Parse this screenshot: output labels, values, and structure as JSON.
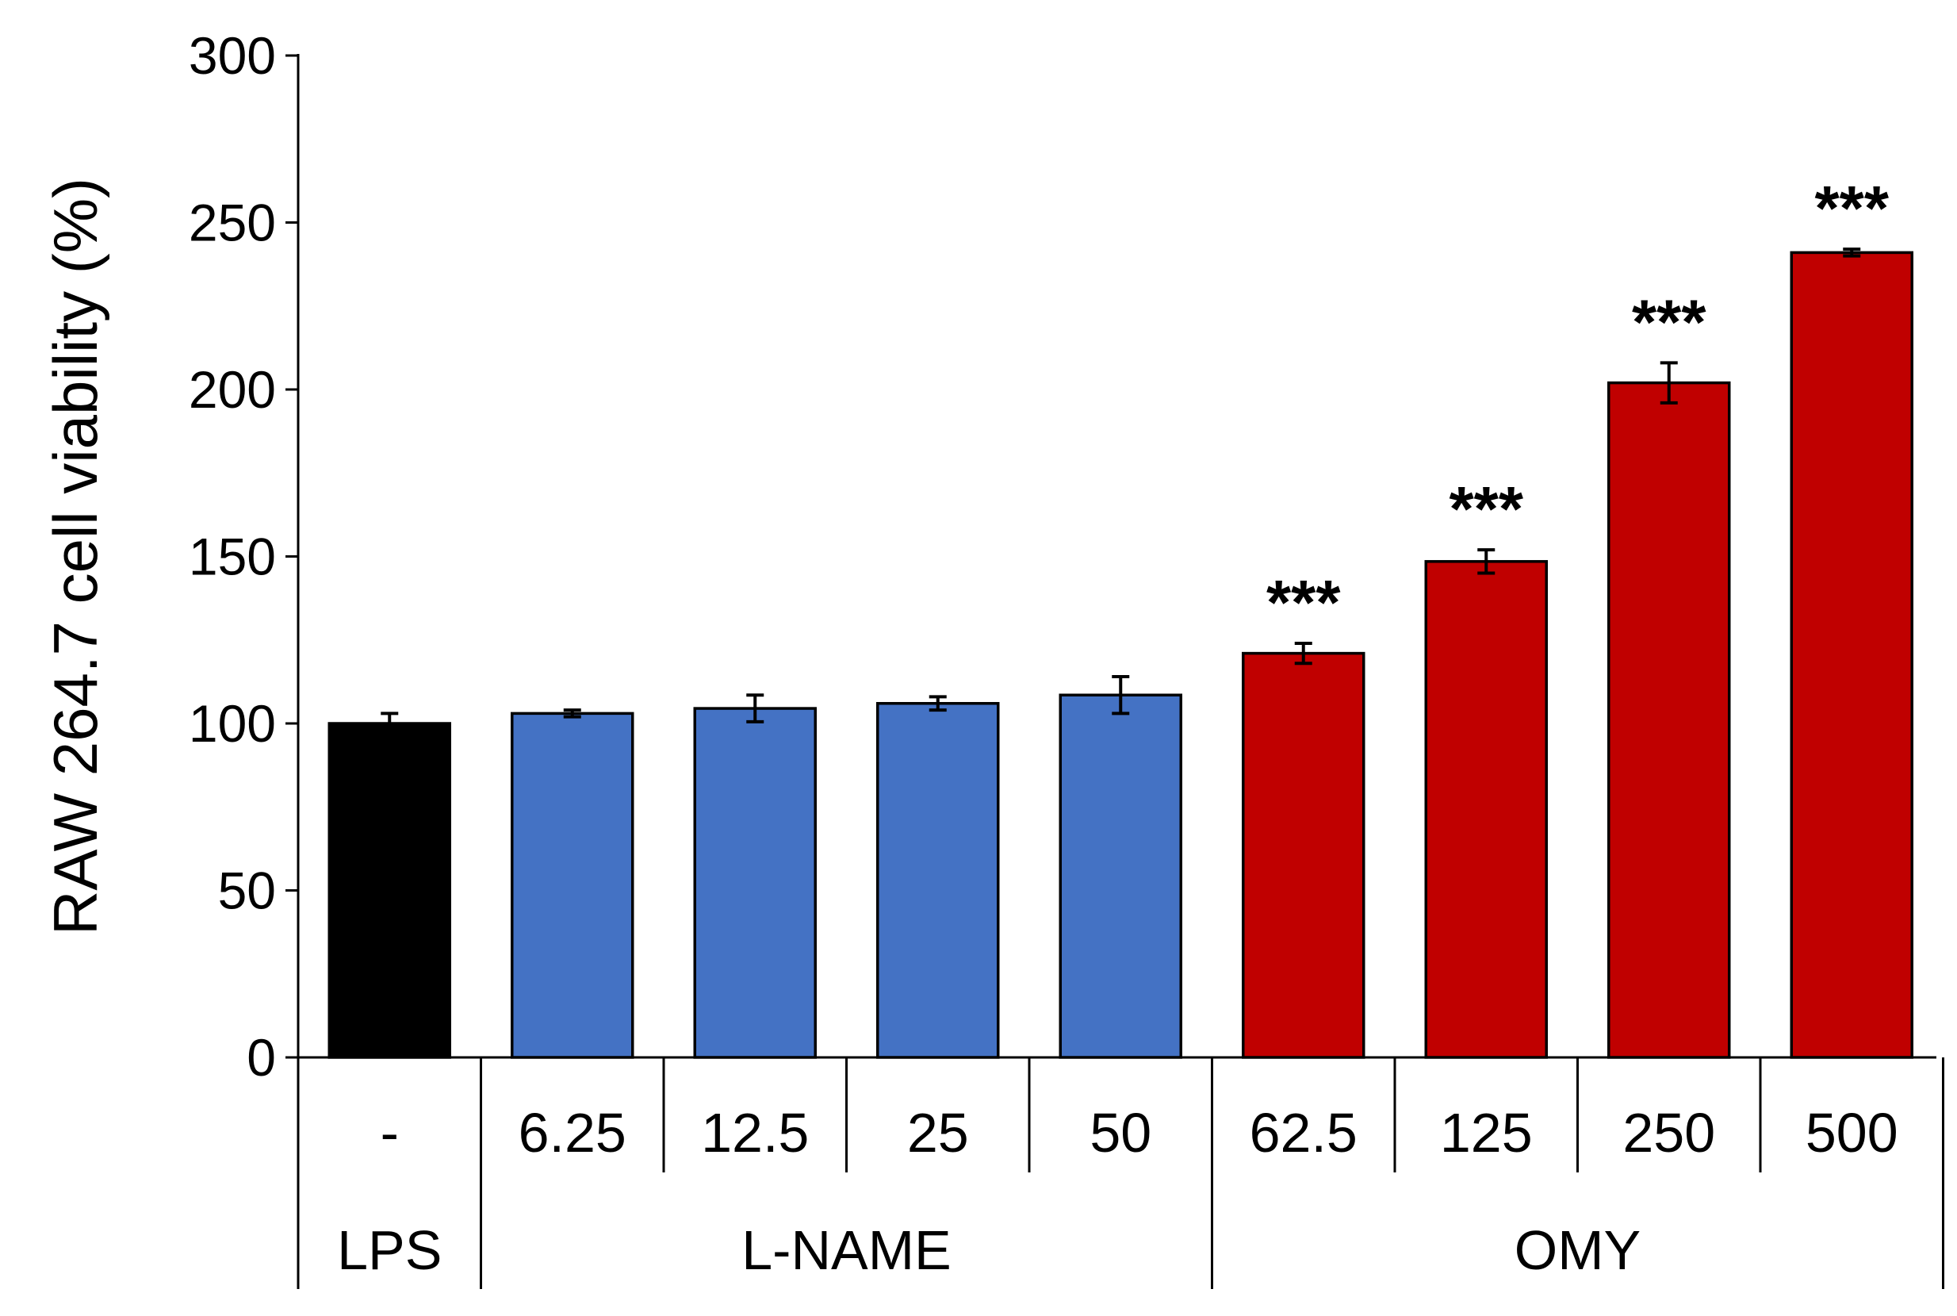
{
  "chart_data": {
    "type": "bar",
    "title": "",
    "xlabel": "",
    "ylabel": "RAW 264.7 cell viability (%)",
    "ylim": [
      0,
      300
    ],
    "yticks": [
      0,
      50,
      100,
      150,
      200,
      250,
      300
    ],
    "grid": false,
    "categories": [
      "-",
      "6.25",
      "12.5",
      "25",
      "50",
      "62.5",
      "125",
      "250",
      "500"
    ],
    "values": [
      100,
      103,
      104.5,
      106,
      108.5,
      121,
      148.5,
      202,
      241
    ],
    "errors": [
      3,
      1,
      4,
      2,
      5.5,
      3,
      3.5,
      6,
      1
    ],
    "colors": [
      "#000000",
      "#4472C4",
      "#4472C4",
      "#4472C4",
      "#4472C4",
      "#C00000",
      "#C00000",
      "#C00000",
      "#C00000"
    ],
    "significance": [
      "",
      "",
      "",
      "",
      "",
      "***",
      "***",
      "***",
      "***"
    ],
    "groups": [
      {
        "label": "LPS",
        "span": [
          0,
          0
        ]
      },
      {
        "label": "L-NAME",
        "span": [
          1,
          4
        ]
      },
      {
        "label": "OMY",
        "span": [
          5,
          8
        ]
      }
    ]
  }
}
